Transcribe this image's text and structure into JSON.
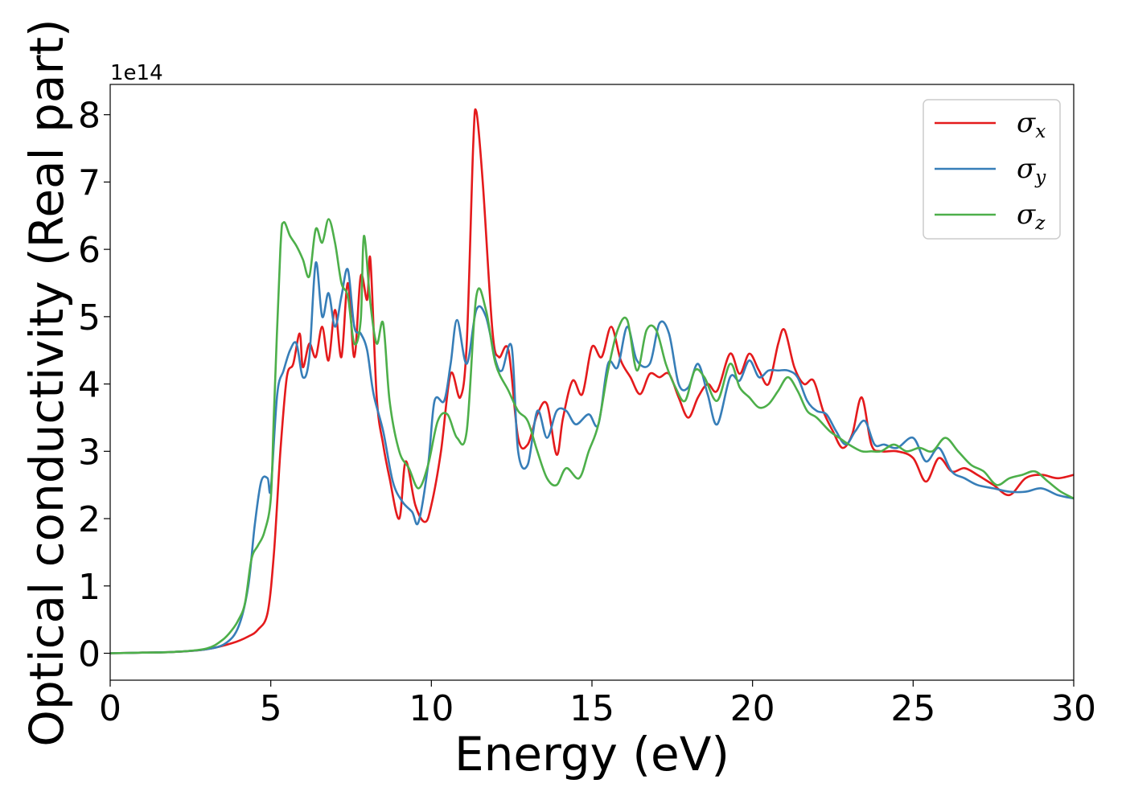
{
  "chart_data": {
    "type": "line",
    "title": "",
    "xlabel": "Energy (eV)",
    "ylabel": "Optical conductivity (Real part)",
    "y_offset_label": "1e14",
    "xlim": [
      0,
      30
    ],
    "ylim": [
      -0.4,
      8.45
    ],
    "x_ticks": [
      0,
      5,
      10,
      15,
      20,
      25,
      30
    ],
    "y_ticks": [
      0,
      1,
      2,
      3,
      4,
      5,
      6,
      7,
      8
    ],
    "grid": false,
    "legend_position": "top-right",
    "series": [
      {
        "name": "σx",
        "symbol": "σ",
        "subscript": "x",
        "color": "#e41a1c",
        "points": [
          [
            0,
            0
          ],
          [
            1,
            0.01
          ],
          [
            2,
            0.02
          ],
          [
            3,
            0.06
          ],
          [
            3.8,
            0.15
          ],
          [
            4.3,
            0.25
          ],
          [
            4.6,
            0.35
          ],
          [
            4.9,
            0.6
          ],
          [
            5.1,
            1.5
          ],
          [
            5.3,
            3.0
          ],
          [
            5.5,
            4.1
          ],
          [
            5.7,
            4.3
          ],
          [
            5.9,
            4.75
          ],
          [
            6.0,
            4.25
          ],
          [
            6.2,
            4.6
          ],
          [
            6.4,
            4.4
          ],
          [
            6.6,
            4.85
          ],
          [
            6.8,
            4.35
          ],
          [
            7.0,
            5.1
          ],
          [
            7.2,
            4.4
          ],
          [
            7.4,
            5.5
          ],
          [
            7.6,
            4.4
          ],
          [
            7.8,
            5.6
          ],
          [
            8.0,
            5.25
          ],
          [
            8.1,
            5.85
          ],
          [
            8.3,
            3.8
          ],
          [
            8.5,
            3.1
          ],
          [
            8.7,
            2.6
          ],
          [
            9.0,
            2.0
          ],
          [
            9.2,
            2.85
          ],
          [
            9.5,
            2.2
          ],
          [
            9.8,
            1.95
          ],
          [
            10.0,
            2.2
          ],
          [
            10.3,
            3.0
          ],
          [
            10.6,
            4.15
          ],
          [
            10.9,
            3.8
          ],
          [
            11.1,
            4.6
          ],
          [
            11.3,
            7.5
          ],
          [
            11.4,
            8.05
          ],
          [
            11.6,
            7.0
          ],
          [
            11.9,
            4.8
          ],
          [
            12.1,
            4.4
          ],
          [
            12.4,
            4.5
          ],
          [
            12.7,
            3.2
          ],
          [
            13.0,
            3.1
          ],
          [
            13.3,
            3.55
          ],
          [
            13.6,
            3.7
          ],
          [
            13.9,
            2.95
          ],
          [
            14.1,
            3.5
          ],
          [
            14.4,
            4.05
          ],
          [
            14.7,
            3.85
          ],
          [
            15.0,
            4.55
          ],
          [
            15.3,
            4.4
          ],
          [
            15.6,
            4.85
          ],
          [
            15.9,
            4.35
          ],
          [
            16.2,
            4.1
          ],
          [
            16.5,
            3.85
          ],
          [
            16.8,
            4.15
          ],
          [
            17.1,
            4.1
          ],
          [
            17.4,
            4.15
          ],
          [
            17.7,
            3.8
          ],
          [
            18.0,
            3.5
          ],
          [
            18.3,
            3.8
          ],
          [
            18.6,
            4.0
          ],
          [
            18.9,
            3.9
          ],
          [
            19.3,
            4.45
          ],
          [
            19.6,
            4.15
          ],
          [
            19.9,
            4.45
          ],
          [
            20.2,
            4.2
          ],
          [
            20.5,
            4.0
          ],
          [
            20.8,
            4.6
          ],
          [
            21.0,
            4.8
          ],
          [
            21.3,
            4.25
          ],
          [
            21.6,
            4.0
          ],
          [
            21.9,
            4.05
          ],
          [
            22.2,
            3.6
          ],
          [
            22.5,
            3.3
          ],
          [
            22.8,
            3.05
          ],
          [
            23.1,
            3.25
          ],
          [
            23.4,
            3.8
          ],
          [
            23.7,
            3.1
          ],
          [
            24.0,
            3.0
          ],
          [
            24.5,
            3.0
          ],
          [
            25.0,
            2.9
          ],
          [
            25.4,
            2.55
          ],
          [
            25.8,
            2.9
          ],
          [
            26.2,
            2.7
          ],
          [
            26.6,
            2.75
          ],
          [
            27.0,
            2.65
          ],
          [
            27.5,
            2.5
          ],
          [
            28.0,
            2.35
          ],
          [
            28.5,
            2.6
          ],
          [
            29.0,
            2.65
          ],
          [
            29.5,
            2.6
          ],
          [
            30,
            2.65
          ]
        ]
      },
      {
        "name": "σy",
        "symbol": "σ",
        "subscript": "y",
        "color": "#377eb8",
        "points": [
          [
            0,
            0
          ],
          [
            1,
            0.01
          ],
          [
            2,
            0.02
          ],
          [
            3,
            0.06
          ],
          [
            3.6,
            0.15
          ],
          [
            4.0,
            0.4
          ],
          [
            4.3,
            1.0
          ],
          [
            4.5,
            1.9
          ],
          [
            4.7,
            2.55
          ],
          [
            4.9,
            2.6
          ],
          [
            5.0,
            2.45
          ],
          [
            5.2,
            3.85
          ],
          [
            5.4,
            4.2
          ],
          [
            5.6,
            4.5
          ],
          [
            5.8,
            4.6
          ],
          [
            6.0,
            4.1
          ],
          [
            6.2,
            4.4
          ],
          [
            6.4,
            5.8
          ],
          [
            6.6,
            5.0
          ],
          [
            6.8,
            5.35
          ],
          [
            7.0,
            4.85
          ],
          [
            7.2,
            5.3
          ],
          [
            7.4,
            5.7
          ],
          [
            7.6,
            4.85
          ],
          [
            7.8,
            4.75
          ],
          [
            8.0,
            4.5
          ],
          [
            8.2,
            3.85
          ],
          [
            8.5,
            3.3
          ],
          [
            8.8,
            2.55
          ],
          [
            9.1,
            2.25
          ],
          [
            9.4,
            2.1
          ],
          [
            9.6,
            1.95
          ],
          [
            9.9,
            2.8
          ],
          [
            10.1,
            3.75
          ],
          [
            10.4,
            3.75
          ],
          [
            10.6,
            4.3
          ],
          [
            10.8,
            4.95
          ],
          [
            11.1,
            4.3
          ],
          [
            11.4,
            5.1
          ],
          [
            11.7,
            5.0
          ],
          [
            12.0,
            4.35
          ],
          [
            12.2,
            4.2
          ],
          [
            12.5,
            4.55
          ],
          [
            12.7,
            3.0
          ],
          [
            13.0,
            2.8
          ],
          [
            13.3,
            3.6
          ],
          [
            13.6,
            3.2
          ],
          [
            13.9,
            3.6
          ],
          [
            14.2,
            3.6
          ],
          [
            14.5,
            3.4
          ],
          [
            14.9,
            3.55
          ],
          [
            15.2,
            3.4
          ],
          [
            15.5,
            4.3
          ],
          [
            15.8,
            4.25
          ],
          [
            16.1,
            4.85
          ],
          [
            16.4,
            4.35
          ],
          [
            16.8,
            4.3
          ],
          [
            17.1,
            4.9
          ],
          [
            17.4,
            4.75
          ],
          [
            17.7,
            4.0
          ],
          [
            18.0,
            3.95
          ],
          [
            18.3,
            4.3
          ],
          [
            18.6,
            3.85
          ],
          [
            18.9,
            3.4
          ],
          [
            19.3,
            4.1
          ],
          [
            19.6,
            4.05
          ],
          [
            19.9,
            4.35
          ],
          [
            20.2,
            4.1
          ],
          [
            20.5,
            4.2
          ],
          [
            20.8,
            4.2
          ],
          [
            21.1,
            4.2
          ],
          [
            21.4,
            4.1
          ],
          [
            21.7,
            3.75
          ],
          [
            22.0,
            3.6
          ],
          [
            22.3,
            3.55
          ],
          [
            22.6,
            3.3
          ],
          [
            22.9,
            3.1
          ],
          [
            23.2,
            3.3
          ],
          [
            23.5,
            3.45
          ],
          [
            23.8,
            3.1
          ],
          [
            24.1,
            3.1
          ],
          [
            24.5,
            3.05
          ],
          [
            25.0,
            3.2
          ],
          [
            25.4,
            2.85
          ],
          [
            25.8,
            3.05
          ],
          [
            26.2,
            2.7
          ],
          [
            26.6,
            2.6
          ],
          [
            27.0,
            2.5
          ],
          [
            27.5,
            2.45
          ],
          [
            28.0,
            2.4
          ],
          [
            28.5,
            2.4
          ],
          [
            29.0,
            2.45
          ],
          [
            29.5,
            2.35
          ],
          [
            30,
            2.3
          ]
        ]
      },
      {
        "name": "σz",
        "symbol": "σ",
        "subscript": "z",
        "color": "#4daf4a",
        "points": [
          [
            0,
            0
          ],
          [
            1,
            0.01
          ],
          [
            2,
            0.02
          ],
          [
            3,
            0.07
          ],
          [
            3.5,
            0.2
          ],
          [
            3.8,
            0.35
          ],
          [
            4.0,
            0.5
          ],
          [
            4.2,
            0.75
          ],
          [
            4.4,
            1.4
          ],
          [
            4.6,
            1.6
          ],
          [
            4.8,
            1.8
          ],
          [
            5.0,
            2.3
          ],
          [
            5.1,
            3.6
          ],
          [
            5.3,
            6.0
          ],
          [
            5.4,
            6.4
          ],
          [
            5.6,
            6.2
          ],
          [
            5.8,
            6.05
          ],
          [
            6.0,
            5.85
          ],
          [
            6.2,
            5.6
          ],
          [
            6.4,
            6.3
          ],
          [
            6.6,
            6.1
          ],
          [
            6.8,
            6.45
          ],
          [
            7.0,
            6.1
          ],
          [
            7.2,
            5.5
          ],
          [
            7.4,
            5.3
          ],
          [
            7.6,
            4.6
          ],
          [
            7.8,
            4.95
          ],
          [
            7.9,
            6.2
          ],
          [
            8.1,
            5.2
          ],
          [
            8.3,
            4.6
          ],
          [
            8.5,
            4.9
          ],
          [
            8.7,
            3.75
          ],
          [
            9.0,
            3.0
          ],
          [
            9.3,
            2.75
          ],
          [
            9.6,
            2.45
          ],
          [
            9.9,
            2.8
          ],
          [
            10.2,
            3.45
          ],
          [
            10.5,
            3.55
          ],
          [
            10.8,
            3.2
          ],
          [
            11.1,
            3.3
          ],
          [
            11.4,
            5.3
          ],
          [
            11.7,
            5.1
          ],
          [
            12.0,
            4.3
          ],
          [
            12.4,
            3.9
          ],
          [
            12.7,
            3.6
          ],
          [
            13.0,
            3.45
          ],
          [
            13.3,
            3.0
          ],
          [
            13.6,
            2.6
          ],
          [
            13.9,
            2.5
          ],
          [
            14.2,
            2.75
          ],
          [
            14.6,
            2.6
          ],
          [
            14.9,
            3.0
          ],
          [
            15.2,
            3.4
          ],
          [
            15.5,
            4.2
          ],
          [
            15.8,
            4.8
          ],
          [
            16.1,
            4.95
          ],
          [
            16.4,
            4.2
          ],
          [
            16.7,
            4.8
          ],
          [
            17.0,
            4.8
          ],
          [
            17.3,
            4.3
          ],
          [
            17.6,
            3.95
          ],
          [
            17.9,
            3.75
          ],
          [
            18.2,
            4.2
          ],
          [
            18.5,
            4.1
          ],
          [
            18.9,
            3.75
          ],
          [
            19.3,
            4.3
          ],
          [
            19.6,
            3.95
          ],
          [
            19.9,
            3.8
          ],
          [
            20.2,
            3.65
          ],
          [
            20.5,
            3.7
          ],
          [
            20.8,
            3.9
          ],
          [
            21.1,
            4.1
          ],
          [
            21.4,
            3.9
          ],
          [
            21.7,
            3.6
          ],
          [
            22.0,
            3.5
          ],
          [
            22.4,
            3.3
          ],
          [
            22.7,
            3.2
          ],
          [
            23.0,
            3.1
          ],
          [
            23.4,
            3.0
          ],
          [
            23.7,
            3.0
          ],
          [
            24.0,
            3.0
          ],
          [
            24.4,
            3.1
          ],
          [
            24.8,
            3.0
          ],
          [
            25.2,
            3.05
          ],
          [
            25.6,
            3.0
          ],
          [
            26.0,
            3.2
          ],
          [
            26.4,
            3.0
          ],
          [
            26.8,
            2.8
          ],
          [
            27.2,
            2.7
          ],
          [
            27.6,
            2.5
          ],
          [
            28.0,
            2.6
          ],
          [
            28.4,
            2.65
          ],
          [
            28.8,
            2.7
          ],
          [
            29.2,
            2.55
          ],
          [
            29.6,
            2.4
          ],
          [
            30,
            2.3
          ]
        ]
      }
    ]
  }
}
